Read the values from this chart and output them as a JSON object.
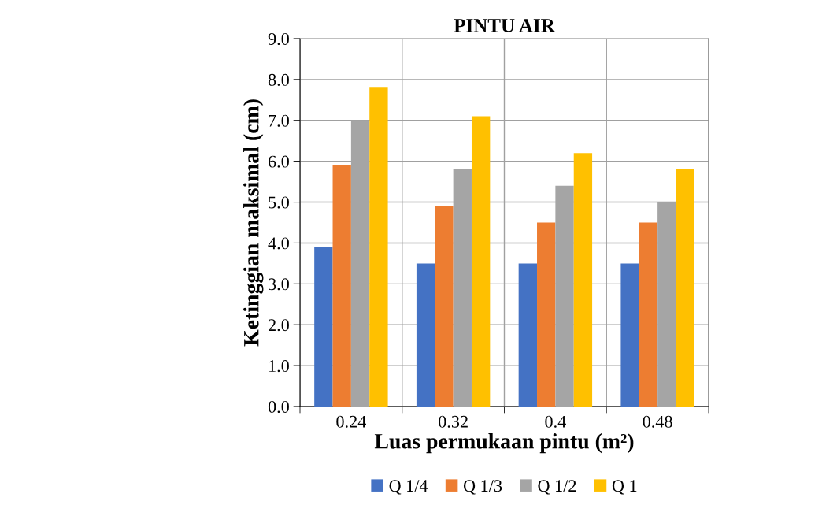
{
  "chart_data": {
    "type": "bar",
    "title": "PINTU AIR",
    "xlabel": "Luas permukaan pintu (m²)",
    "ylabel": "Ketinggian maksimal (cm)",
    "categories": [
      "0.24",
      "0.32",
      "0.4",
      "0.48"
    ],
    "series": [
      {
        "name": "Q 1/4",
        "color": "#4472c4",
        "values": [
          3.9,
          3.5,
          3.5,
          3.5
        ]
      },
      {
        "name": "Q 1/3",
        "color": "#ed7d31",
        "values": [
          5.9,
          4.9,
          4.5,
          4.5
        ]
      },
      {
        "name": "Q 1/2",
        "color": "#a5a5a5",
        "values": [
          7.0,
          5.8,
          5.4,
          5.0
        ]
      },
      {
        "name": "Q 1",
        "color": "#ffc000",
        "values": [
          7.8,
          7.1,
          6.2,
          5.8
        ]
      }
    ],
    "ylim": [
      0,
      9
    ],
    "yticks": [
      {
        "value": 0,
        "label": "0.0"
      },
      {
        "value": 1,
        "label": "1.0"
      },
      {
        "value": 2,
        "label": "2.0"
      },
      {
        "value": 3,
        "label": "3.0"
      },
      {
        "value": 4,
        "label": "4.0"
      },
      {
        "value": 5,
        "label": "5.0"
      },
      {
        "value": 6,
        "label": "6.0"
      },
      {
        "value": 7,
        "label": "7.0"
      },
      {
        "value": 8,
        "label": "8.0"
      },
      {
        "value": 9,
        "label": "9.0"
      }
    ],
    "grid": true,
    "legend": "bottom"
  }
}
